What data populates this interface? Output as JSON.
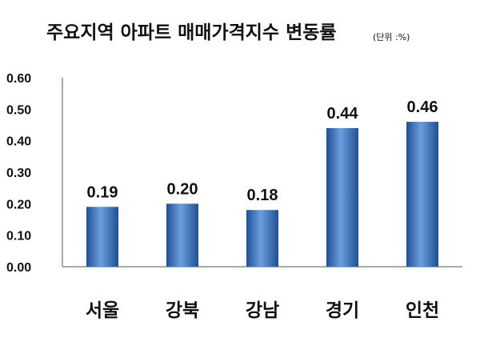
{
  "chart_data": {
    "type": "bar",
    "title": "주요지역 아파트 매매가격지수 변동률",
    "unit_note": "(단위 :%)",
    "categories": [
      "서울",
      "강북",
      "강남",
      "경기",
      "인천"
    ],
    "values": [
      0.19,
      0.2,
      0.18,
      0.44,
      0.46
    ],
    "data_labels": [
      "0.19",
      "0.20",
      "0.18",
      "0.44",
      "0.46"
    ],
    "y_ticks": [
      "0.00",
      "0.10",
      "0.20",
      "0.30",
      "0.40",
      "0.50",
      "0.60"
    ],
    "ylim": [
      0,
      0.6
    ],
    "grid": false,
    "legend": "none",
    "bar_color": "#3f78c8",
    "bar_color_light": "#6d9edc",
    "bar_color_dark": "#1f4f96"
  }
}
